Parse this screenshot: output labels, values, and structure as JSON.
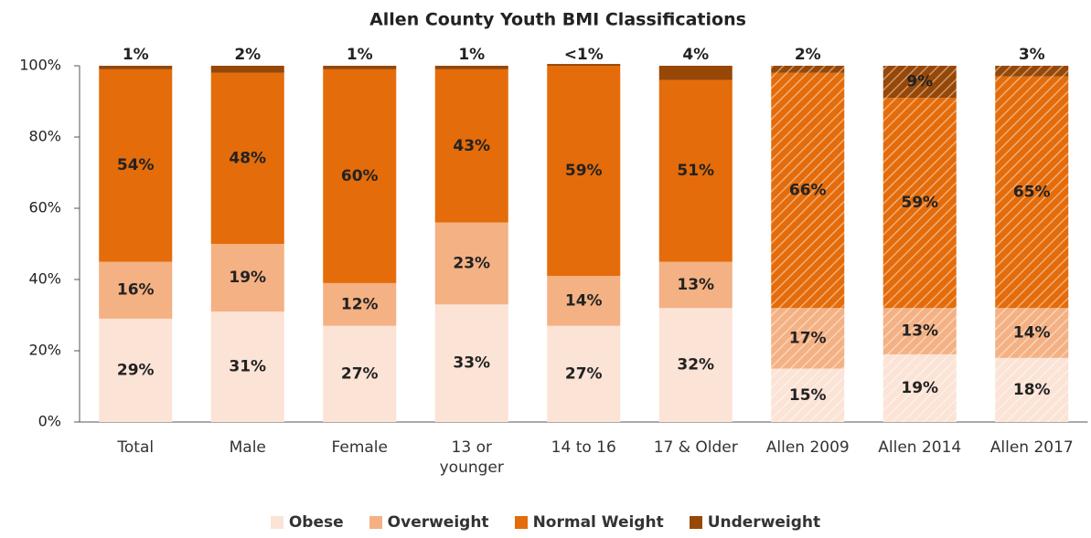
{
  "chart_data": {
    "type": "stacked_bar",
    "title": "Allen County Youth BMI Classifications",
    "categories": [
      "Total",
      "Male",
      "Female",
      "13 or\nyounger",
      "14 to 16",
      "17 & Older",
      "Allen 2009",
      "Allen 2014",
      "Allen 2017"
    ],
    "hatched": [
      false,
      false,
      false,
      false,
      false,
      false,
      true,
      true,
      true
    ],
    "series": [
      {
        "name": "Obese",
        "color": "#fbe3d6",
        "values": [
          29,
          31,
          27,
          33,
          27,
          32,
          15,
          19,
          18
        ],
        "value_labels": [
          "29%",
          "31%",
          "27%",
          "33%",
          "27%",
          "32%",
          "15%",
          "19%",
          "18%"
        ]
      },
      {
        "name": "Overweight",
        "color": "#f4b183",
        "values": [
          16,
          19,
          12,
          23,
          14,
          13,
          17,
          13,
          14
        ],
        "value_labels": [
          "16%",
          "19%",
          "12%",
          "23%",
          "14%",
          "13%",
          "17%",
          "13%",
          "14%"
        ]
      },
      {
        "name": "Normal Weight",
        "color": "#e46c0a",
        "values": [
          54,
          48,
          60,
          43,
          59,
          51,
          66,
          59,
          65
        ],
        "value_labels": [
          "54%",
          "48%",
          "60%",
          "43%",
          "59%",
          "51%",
          "66%",
          "59%",
          "65%"
        ]
      },
      {
        "name": "Underweight",
        "color": "#974706",
        "values": [
          1,
          2,
          1,
          1,
          0.5,
          4,
          2,
          9,
          3
        ],
        "value_labels": [
          "1%",
          "2%",
          "1%",
          "1%",
          "<1%",
          "4%",
          "2%",
          "9%",
          "3%"
        ]
      }
    ],
    "ylim": [
      0,
      100
    ],
    "yticks": [
      {
        "value": 0,
        "label": "0%"
      },
      {
        "value": 20,
        "label": "20%"
      },
      {
        "value": 40,
        "label": "40%"
      },
      {
        "value": 60,
        "label": "60%"
      },
      {
        "value": 80,
        "label": "80%"
      },
      {
        "value": 100,
        "label": "100%"
      }
    ],
    "legend": "bottom"
  }
}
